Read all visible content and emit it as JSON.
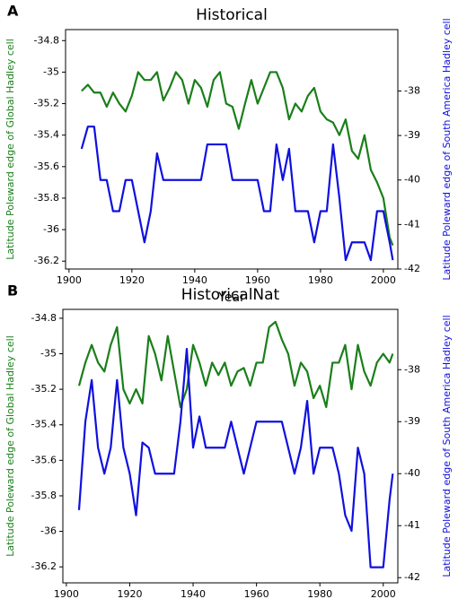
{
  "chart_data": [
    {
      "type": "line",
      "panel": "A",
      "title": "Historical",
      "xlabel": "Year",
      "ylabel": "Latitude Poleward edge of Global Hadley cell",
      "y2label": "Latitude Poleward edge of South America Hadley cell",
      "x": [
        1904,
        1906,
        1908,
        1910,
        1912,
        1914,
        1916,
        1918,
        1920,
        1922,
        1924,
        1926,
        1928,
        1930,
        1932,
        1934,
        1936,
        1938,
        1940,
        1942,
        1944,
        1946,
        1948,
        1950,
        1952,
        1954,
        1956,
        1958,
        1960,
        1962,
        1964,
        1966,
        1968,
        1970,
        1972,
        1974,
        1976,
        1978,
        1980,
        1982,
        1984,
        1986,
        1988,
        1990,
        1992,
        1994,
        1996,
        1998,
        2000,
        2002,
        2003
      ],
      "series": [
        {
          "color": "#1a7f1a",
          "values": [
            -35.12,
            -35.08,
            -35.13,
            -35.13,
            -35.22,
            -35.13,
            -35.2,
            -35.25,
            -35.15,
            -35.0,
            -35.05,
            -35.05,
            -35.0,
            -35.18,
            -35.1,
            -35.0,
            -35.05,
            -35.2,
            -35.05,
            -35.1,
            -35.22,
            -35.05,
            -35.0,
            -35.2,
            -35.22,
            -35.36,
            -35.2,
            -35.05,
            -35.2,
            -35.1,
            -35.0,
            -35.0,
            -35.1,
            -35.3,
            -35.2,
            -35.25,
            -35.15,
            -35.1,
            -35.25,
            -35.3,
            -35.32,
            -35.4,
            -35.3,
            -35.5,
            -35.55,
            -35.4,
            -35.62,
            -35.7,
            -35.8,
            -36.05,
            -36.1
          ]
        },
        {
          "color": "#1010e0",
          "axis": "y2",
          "values": [
            -39.3,
            -38.8,
            -38.8,
            -40,
            -40,
            -40.7,
            -40.7,
            -40,
            -40,
            -40.7,
            -41.4,
            -40.7,
            -39.4,
            -40,
            -40,
            -40,
            -40,
            -40,
            -40,
            -40,
            -39.2,
            -39.2,
            -39.2,
            -39.2,
            -40,
            -40,
            -40,
            -40,
            -40,
            -40.7,
            -40.7,
            -39.2,
            -40,
            -39.3,
            -40.7,
            -40.7,
            -40.7,
            -41.4,
            -40.7,
            -40.7,
            -39.2,
            -40.4,
            -41.8,
            -41.4,
            -41.4,
            -41.4,
            -41.8,
            -40.7,
            -40.7,
            -41.4,
            -41.8
          ]
        }
      ],
      "xlim": [
        1898.9,
        2004.6
      ],
      "xticks": [
        1900,
        1920,
        1940,
        1960,
        1980,
        2000
      ],
      "ylim": [
        -34.73,
        -36.25
      ],
      "yticks": [
        -34.8,
        -35.0,
        -35.2,
        -35.4,
        -35.6,
        -35.8,
        -36.0,
        -36.2
      ],
      "y2lim": [
        -36.62,
        -42.0
      ],
      "y2ticks": [
        -38,
        -39,
        -40,
        -41,
        -42
      ]
    },
    {
      "type": "line",
      "panel": "B",
      "title": "HistoricalNat",
      "ylabel": "Latitude Poleward edge of Global Hadley cell",
      "y2label": "Latitude Poleward edge of South America Hadley cell",
      "x": [
        1904,
        1906,
        1908,
        1910,
        1912,
        1914,
        1916,
        1918,
        1920,
        1922,
        1924,
        1926,
        1928,
        1930,
        1932,
        1934,
        1936,
        1938,
        1940,
        1942,
        1944,
        1946,
        1948,
        1950,
        1952,
        1954,
        1956,
        1958,
        1960,
        1962,
        1964,
        1966,
        1968,
        1970,
        1972,
        1974,
        1976,
        1978,
        1980,
        1982,
        1984,
        1986,
        1988,
        1990,
        1992,
        1994,
        1996,
        1998,
        2000,
        2002,
        2003
      ],
      "series": [
        {
          "color": "#1a7f1a",
          "values": [
            -35.18,
            -35.05,
            -34.95,
            -35.05,
            -35.1,
            -34.95,
            -34.85,
            -35.2,
            -35.28,
            -35.2,
            -35.28,
            -34.9,
            -35.0,
            -35.15,
            -34.9,
            -35.1,
            -35.3,
            -35.2,
            -34.95,
            -35.05,
            -35.18,
            -35.05,
            -35.12,
            -35.05,
            -35.18,
            -35.1,
            -35.08,
            -35.18,
            -35.05,
            -35.05,
            -34.85,
            -34.82,
            -34.92,
            -35.0,
            -35.18,
            -35.05,
            -35.1,
            -35.25,
            -35.18,
            -35.3,
            -35.05,
            -35.05,
            -34.95,
            -35.2,
            -34.95,
            -35.1,
            -35.18,
            -35.05,
            -35.0,
            -35.05,
            -35.0
          ]
        },
        {
          "color": "#1010e0",
          "axis": "y2",
          "values": [
            -40.7,
            -39,
            -38.2,
            -39.5,
            -40,
            -39.5,
            -38.2,
            -39.5,
            -40,
            -40.8,
            -39.4,
            -39.5,
            -40,
            -40,
            -40,
            -40,
            -39,
            -37.6,
            -39.5,
            -38.9,
            -39.5,
            -39.5,
            -39.5,
            -39.5,
            -39,
            -39.5,
            -40,
            -39.5,
            -39,
            -39,
            -39,
            -39,
            -39,
            -39.5,
            -40,
            -39.5,
            -38.6,
            -40,
            -39.5,
            -39.5,
            -39.5,
            -40,
            -40.8,
            -41.1,
            -39.5,
            -40,
            -41.8,
            -41.8,
            -41.8,
            -40.5,
            -40
          ]
        }
      ],
      "xlim": [
        1898.9,
        2004.6
      ],
      "xticks": [
        1900,
        1920,
        1940,
        1960,
        1980,
        2000
      ],
      "ylim": [
        -34.75,
        -36.29
      ],
      "yticks": [
        -34.8,
        -35.0,
        -35.2,
        -35.4,
        -35.6,
        -35.8,
        -36.0,
        -36.2
      ],
      "y2lim": [
        -36.84,
        -42.1
      ],
      "y2ticks": [
        -38,
        -39,
        -40,
        -41,
        -42
      ]
    }
  ]
}
